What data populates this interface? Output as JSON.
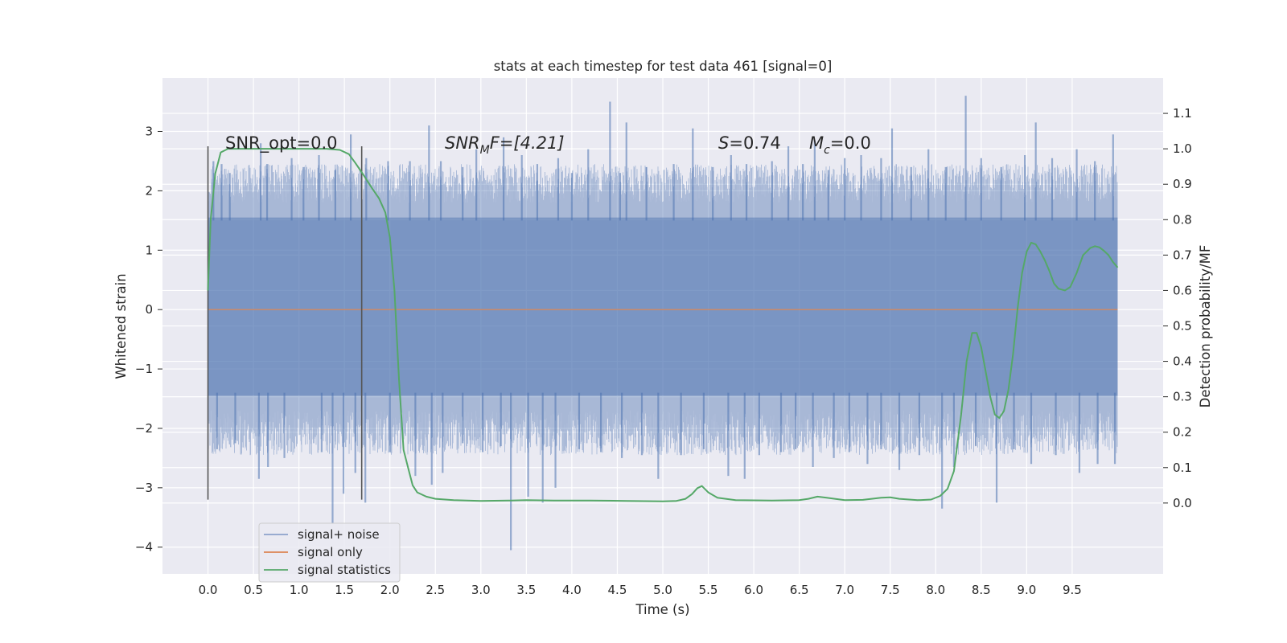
{
  "chart_data": {
    "type": "line",
    "title": "stats at each timestep for test data 461 [signal=0]",
    "xlabel": "Time (s)",
    "ylabel": "Whitened strain",
    "y2label": "Detection probability/MF",
    "xlim": [
      -0.5,
      10.5
    ],
    "ylim": [
      -4.45,
      3.9
    ],
    "y2lim": [
      -0.2,
      1.2
    ],
    "x_ticks": [
      "0.0",
      "0.5",
      "1.0",
      "1.5",
      "2.0",
      "2.5",
      "3.0",
      "3.5",
      "4.0",
      "4.5",
      "5.0",
      "5.5",
      "6.0",
      "6.5",
      "7.0",
      "7.5",
      "8.0",
      "8.5",
      "9.0",
      "9.5"
    ],
    "y_ticks": [
      "3",
      "2",
      "1",
      "0",
      "−1",
      "−2",
      "−3",
      "−4"
    ],
    "y2_ticks": [
      "1.1",
      "1.0",
      "0.9",
      "0.8",
      "0.7",
      "0.6",
      "0.5",
      "0.4",
      "0.3",
      "0.2",
      "0.1",
      "0.0"
    ],
    "grid": true,
    "legend_position": "lower-left",
    "annotations": {
      "snr_opt": "SNR_opt=0.0",
      "snr_mf_base": "SNR",
      "snr_mf_sub": "M",
      "snr_mf_rest": "F=[4.21]",
      "s_var": "S",
      "s_val": "=0.74",
      "mc_var": "M",
      "mc_sub": "c",
      "mc_val": "=0.0"
    },
    "vlines": [
      0.0,
      1.69
    ],
    "series": [
      {
        "name": "signal+ noise",
        "color": "#4c72b0",
        "kind": "noise",
        "x_range": [
          0.0,
          10.0
        ],
        "band_upper": 1.55,
        "band_lower": -1.45,
        "peaks_high": [
          [
            0.06,
            2.5
          ],
          [
            0.15,
            2.45
          ],
          [
            0.24,
            2.3
          ],
          [
            0.58,
            2.8
          ],
          [
            0.65,
            2.45
          ],
          [
            0.92,
            2.55
          ],
          [
            1.05,
            2.4
          ],
          [
            1.22,
            2.6
          ],
          [
            1.4,
            2.35
          ],
          [
            1.57,
            2.95
          ],
          [
            1.74,
            2.55
          ],
          [
            1.98,
            2.5
          ],
          [
            2.22,
            2.5
          ],
          [
            2.43,
            3.1
          ],
          [
            2.56,
            2.5
          ],
          [
            2.8,
            2.4
          ],
          [
            2.95,
            2.7
          ],
          [
            3.25,
            2.9
          ],
          [
            3.45,
            2.6
          ],
          [
            3.62,
            2.45
          ],
          [
            3.85,
            2.55
          ],
          [
            4.0,
            2.3
          ],
          [
            4.18,
            2.7
          ],
          [
            4.42,
            3.5
          ],
          [
            4.53,
            2.3
          ],
          [
            4.6,
            3.15
          ],
          [
            4.82,
            2.4
          ],
          [
            5.12,
            2.45
          ],
          [
            5.33,
            3.05
          ],
          [
            5.55,
            2.4
          ],
          [
            5.75,
            2.6
          ],
          [
            5.92,
            2.45
          ],
          [
            6.2,
            2.5
          ],
          [
            6.38,
            2.75
          ],
          [
            6.54,
            2.45
          ],
          [
            6.67,
            2.85
          ],
          [
            6.82,
            2.35
          ],
          [
            7.0,
            2.55
          ],
          [
            7.18,
            2.6
          ],
          [
            7.4,
            2.55
          ],
          [
            7.52,
            3.05
          ],
          [
            7.73,
            2.4
          ],
          [
            7.92,
            2.7
          ],
          [
            8.11,
            2.4
          ],
          [
            8.33,
            3.6
          ],
          [
            8.5,
            2.55
          ],
          [
            8.72,
            2.4
          ],
          [
            8.98,
            2.6
          ],
          [
            9.1,
            3.15
          ],
          [
            9.28,
            2.55
          ],
          [
            9.55,
            2.7
          ],
          [
            9.75,
            2.5
          ],
          [
            9.95,
            2.95
          ]
        ],
        "peaks_low": [
          [
            0.1,
            -2.35
          ],
          [
            0.3,
            -2.25
          ],
          [
            0.56,
            -2.85
          ],
          [
            0.66,
            -2.65
          ],
          [
            0.84,
            -2.5
          ],
          [
            1.25,
            -2.4
          ],
          [
            1.37,
            -3.6
          ],
          [
            1.49,
            -3.1
          ],
          [
            1.62,
            -2.75
          ],
          [
            1.73,
            -3.25
          ],
          [
            2.0,
            -2.4
          ],
          [
            2.28,
            -2.8
          ],
          [
            2.46,
            -2.95
          ],
          [
            2.58,
            -2.75
          ],
          [
            2.8,
            -2.25
          ],
          [
            3.02,
            -2.4
          ],
          [
            3.22,
            -2.3
          ],
          [
            3.33,
            -4.05
          ],
          [
            3.52,
            -3.15
          ],
          [
            3.68,
            -3.25
          ],
          [
            3.82,
            -3.0
          ],
          [
            4.08,
            -2.35
          ],
          [
            4.32,
            -2.4
          ],
          [
            4.55,
            -2.5
          ],
          [
            4.77,
            -2.45
          ],
          [
            4.95,
            -2.85
          ],
          [
            5.2,
            -2.45
          ],
          [
            5.45,
            -2.35
          ],
          [
            5.72,
            -2.8
          ],
          [
            5.9,
            -2.85
          ],
          [
            6.06,
            -2.45
          ],
          [
            6.3,
            -2.4
          ],
          [
            6.46,
            -2.35
          ],
          [
            6.65,
            -2.65
          ],
          [
            6.88,
            -2.5
          ],
          [
            7.05,
            -2.4
          ],
          [
            7.25,
            -2.6
          ],
          [
            7.4,
            -2.35
          ],
          [
            7.6,
            -2.7
          ],
          [
            7.82,
            -2.45
          ],
          [
            8.07,
            -3.35
          ],
          [
            8.2,
            -2.65
          ],
          [
            8.44,
            -2.3
          ],
          [
            8.67,
            -3.25
          ],
          [
            8.86,
            -2.35
          ],
          [
            9.05,
            -2.6
          ],
          [
            9.32,
            -2.45
          ],
          [
            9.58,
            -2.75
          ],
          [
            9.78,
            -2.6
          ],
          [
            9.97,
            -2.6
          ]
        ]
      },
      {
        "name": "signal only",
        "color": "#dd8452",
        "kind": "line",
        "x": [
          0.0,
          10.0
        ],
        "y": [
          0.0,
          0.0
        ]
      },
      {
        "name": "signal statistics",
        "color": "#55a868",
        "kind": "line",
        "axis": "right",
        "x": [
          0.0,
          0.03,
          0.08,
          0.14,
          0.22,
          0.35,
          0.6,
          1.0,
          1.3,
          1.45,
          1.55,
          1.62,
          1.7,
          1.8,
          1.88,
          1.95,
          2.0,
          2.05,
          2.1,
          2.15,
          2.2,
          2.25,
          2.3,
          2.4,
          2.5,
          2.7,
          3.0,
          3.3,
          3.5,
          3.8,
          4.2,
          4.6,
          5.0,
          5.15,
          5.25,
          5.32,
          5.38,
          5.43,
          5.5,
          5.6,
          5.8,
          6.2,
          6.5,
          6.6,
          6.7,
          6.8,
          7.0,
          7.2,
          7.4,
          7.5,
          7.6,
          7.8,
          7.95,
          8.05,
          8.13,
          8.2,
          8.28,
          8.34,
          8.4,
          8.45,
          8.5,
          8.55,
          8.6,
          8.65,
          8.7,
          8.75,
          8.8,
          8.85,
          8.9,
          8.95,
          9.0,
          9.05,
          9.1,
          9.15,
          9.2,
          9.25,
          9.3,
          9.35,
          9.42,
          9.48,
          9.55,
          9.62,
          9.7,
          9.75,
          9.8,
          9.85,
          9.9,
          9.95,
          10.0
        ],
        "y": [
          0.6,
          0.8,
          0.93,
          0.99,
          1.0,
          1.0,
          1.0,
          1.0,
          1.0,
          0.997,
          0.985,
          0.96,
          0.93,
          0.89,
          0.86,
          0.82,
          0.75,
          0.6,
          0.35,
          0.15,
          0.1,
          0.05,
          0.03,
          0.018,
          0.012,
          0.008,
          0.006,
          0.007,
          0.008,
          0.007,
          0.007,
          0.006,
          0.005,
          0.006,
          0.012,
          0.025,
          0.042,
          0.048,
          0.03,
          0.015,
          0.008,
          0.007,
          0.008,
          0.012,
          0.018,
          0.015,
          0.008,
          0.009,
          0.015,
          0.016,
          0.012,
          0.008,
          0.01,
          0.02,
          0.04,
          0.09,
          0.25,
          0.4,
          0.48,
          0.48,
          0.44,
          0.37,
          0.3,
          0.25,
          0.24,
          0.26,
          0.32,
          0.42,
          0.55,
          0.65,
          0.71,
          0.735,
          0.73,
          0.71,
          0.685,
          0.655,
          0.62,
          0.605,
          0.6,
          0.61,
          0.65,
          0.7,
          0.72,
          0.725,
          0.722,
          0.712,
          0.7,
          0.68,
          0.665
        ]
      }
    ]
  }
}
